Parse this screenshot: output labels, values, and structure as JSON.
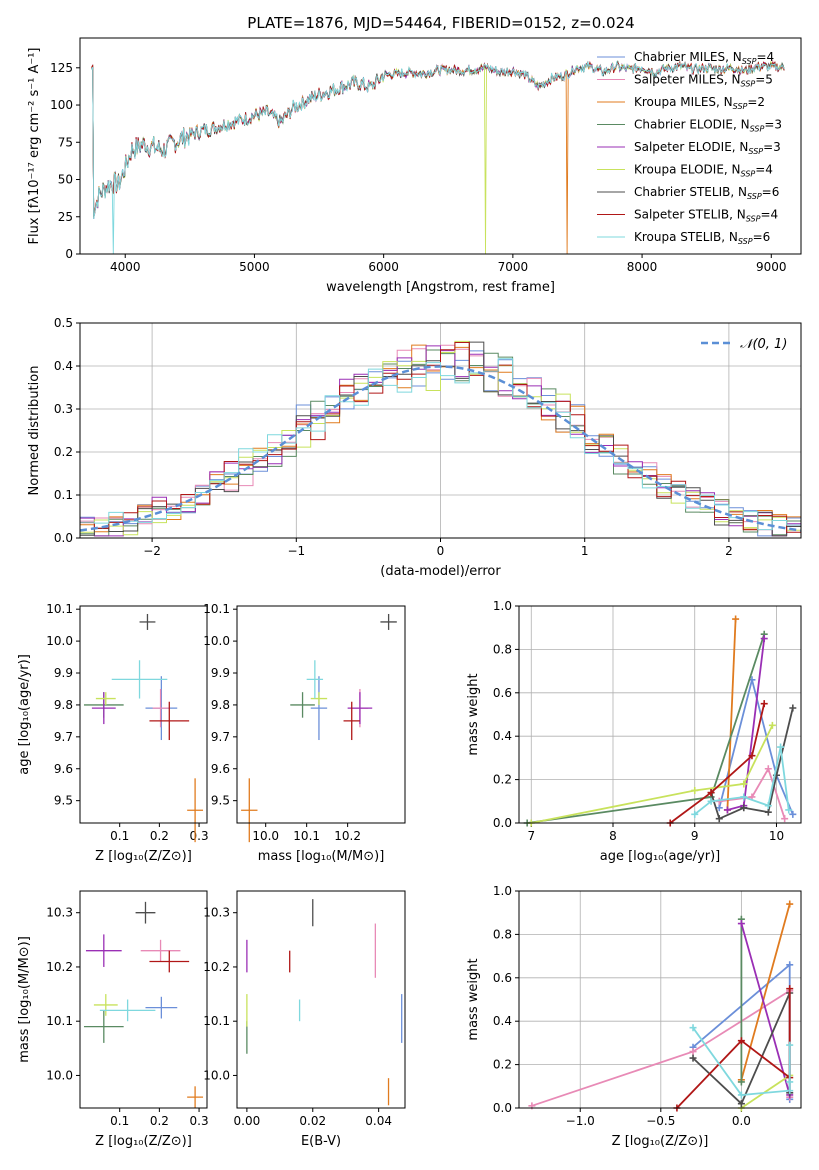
{
  "figure_title": "PLATE=1876, MJD=54464, FIBERID=0152, z=0.024",
  "models": [
    {
      "name": "Chabrier MILES",
      "nssp": "4",
      "color": "#6b8fd9"
    },
    {
      "name": "Salpeter MILES",
      "nssp": "5",
      "color": "#e88ab6"
    },
    {
      "name": "Kroupa MILES",
      "nssp": "2",
      "color": "#e07b1f"
    },
    {
      "name": "Chabrier ELODIE",
      "nssp": "3",
      "color": "#5a8a62"
    },
    {
      "name": "Salpeter ELODIE",
      "nssp": "3",
      "color": "#9a2fb5"
    },
    {
      "name": "Kroupa ELODIE",
      "nssp": "4",
      "color": "#c8e25c"
    },
    {
      "name": "Chabrier STELIB",
      "nssp": "6",
      "color": "#4d4d4d"
    },
    {
      "name": "Salpeter STELIB",
      "nssp": "4",
      "color": "#b01717"
    },
    {
      "name": "Kroupa STELIB",
      "nssp": "6",
      "color": "#7fd8de"
    }
  ],
  "chart_data": [
    {
      "id": "spectrum",
      "type": "line",
      "xlabel": "wavelength [Angstrom, rest frame]",
      "ylabel": "Flux [fλ10⁻¹⁷ erg cm⁻² s⁻¹ A⁻¹]",
      "xlim": [
        3650,
        9230
      ],
      "ylim": [
        0,
        145
      ],
      "xticks": [
        4000,
        5000,
        6000,
        7000,
        8000,
        9000
      ],
      "yticks": [
        0,
        25,
        50,
        75,
        100,
        125
      ],
      "continuum": [
        [
          3750,
          28
        ],
        [
          3800,
          40
        ],
        [
          3850,
          45
        ],
        [
          3900,
          48
        ],
        [
          3950,
          47
        ],
        [
          4000,
          58
        ],
        [
          4050,
          70
        ],
        [
          4100,
          72
        ],
        [
          4150,
          74
        ],
        [
          4200,
          72
        ],
        [
          4300,
          70
        ],
        [
          4400,
          76
        ],
        [
          4500,
          80
        ],
        [
          4600,
          83
        ],
        [
          4700,
          85
        ],
        [
          4800,
          88
        ],
        [
          4900,
          90
        ],
        [
          5000,
          93
        ],
        [
          5100,
          95
        ],
        [
          5200,
          88
        ],
        [
          5300,
          98
        ],
        [
          5400,
          103
        ],
        [
          5500,
          107
        ],
        [
          5600,
          110
        ],
        [
          5700,
          113
        ],
        [
          5800,
          115
        ],
        [
          5900,
          112
        ],
        [
          6000,
          120
        ],
        [
          6100,
          121
        ],
        [
          6200,
          122
        ],
        [
          6300,
          121
        ],
        [
          6400,
          123
        ],
        [
          6500,
          124
        ],
        [
          6600,
          123
        ],
        [
          6700,
          124
        ],
        [
          6800,
          125
        ],
        [
          6900,
          122
        ],
        [
          7000,
          123
        ],
        [
          7100,
          120
        ],
        [
          7200,
          112
        ],
        [
          7300,
          118
        ],
        [
          7400,
          120
        ],
        [
          7500,
          125
        ],
        [
          7600,
          126
        ],
        [
          7700,
          122
        ],
        [
          7800,
          126
        ],
        [
          7900,
          124
        ],
        [
          8000,
          125
        ],
        [
          8100,
          122
        ],
        [
          8200,
          125
        ],
        [
          8300,
          126
        ],
        [
          8400,
          124
        ],
        [
          8500,
          125
        ],
        [
          8600,
          124
        ],
        [
          8700,
          125
        ],
        [
          8800,
          123
        ],
        [
          8900,
          126
        ],
        [
          9000,
          126
        ],
        [
          9100,
          125
        ]
      ],
      "notes": "Model spectra overlap nearly completely; a few model curves drop to 0 near 3910, 6790 and 7420 Angstrom."
    },
    {
      "id": "residuals",
      "type": "histogram",
      "xlabel": "(data-model)/error",
      "ylabel": "Normed distribution",
      "xlim": [
        -2.5,
        2.5
      ],
      "ylim": [
        0,
        0.5
      ],
      "xticks": [
        -2,
        -1,
        0,
        1,
        2
      ],
      "yticks": [
        0.0,
        0.1,
        0.2,
        0.3,
        0.4,
        0.5
      ],
      "legend": "𝒩(0, 1)",
      "bin_width": 0.1,
      "reference_curve": "normal(0,1)"
    },
    {
      "id": "age_vs_Z",
      "type": "scatter",
      "xlabel": "Z [log₁₀(Z/Z⊙)]",
      "ylabel": "age  [log₁₀(age/yr)]",
      "xlim": [
        0.0,
        0.32
      ],
      "ylim": [
        9.43,
        10.11
      ],
      "xticks": [
        0.1,
        0.2,
        0.3
      ],
      "yticks": [
        9.5,
        9.6,
        9.7,
        9.8,
        9.9,
        10.0,
        10.1
      ],
      "points": [
        {
          "model": 0,
          "x": 0.205,
          "y": 9.79,
          "xerr": 0.04,
          "yerr": 0.1
        },
        {
          "model": 1,
          "x": 0.203,
          "y": 9.79,
          "xerr": 0.02,
          "yerr": 0.06
        },
        {
          "model": 2,
          "x": 0.29,
          "y": 9.47,
          "xerr": 0.02,
          "yerr": 0.1
        },
        {
          "model": 3,
          "x": 0.06,
          "y": 9.8,
          "xerr": 0.05,
          "yerr": 0.04
        },
        {
          "model": 4,
          "x": 0.06,
          "y": 9.79,
          "xerr": 0.03,
          "yerr": 0.05
        },
        {
          "model": 5,
          "x": 0.065,
          "y": 9.82,
          "xerr": 0.025,
          "yerr": 0.02
        },
        {
          "model": 6,
          "x": 0.17,
          "y": 10.06,
          "xerr": 0.02,
          "yerr": 0.025
        },
        {
          "model": 7,
          "x": 0.225,
          "y": 9.75,
          "xerr": 0.05,
          "yerr": 0.06
        },
        {
          "model": 8,
          "x": 0.15,
          "y": 9.88,
          "xerr": 0.07,
          "yerr": 0.06
        }
      ]
    },
    {
      "id": "age_vs_mass",
      "type": "scatter",
      "xlabel": "mass [log₁₀(M/M⊙)]",
      "ylabel": "",
      "xlim": [
        9.93,
        10.34
      ],
      "ylim": [
        9.43,
        10.11
      ],
      "xticks": [
        10.0,
        10.1,
        10.2
      ],
      "yticks": [
        9.5,
        9.6,
        9.7,
        9.8,
        9.9,
        10.0,
        10.1
      ],
      "points": [
        {
          "model": 0,
          "x": 10.13,
          "y": 9.79,
          "xerr": 0.02,
          "yerr": 0.1
        },
        {
          "model": 1,
          "x": 10.23,
          "y": 9.79,
          "xerr": 0.02,
          "yerr": 0.06
        },
        {
          "model": 2,
          "x": 9.96,
          "y": 9.47,
          "xerr": 0.02,
          "yerr": 0.1
        },
        {
          "model": 3,
          "x": 10.09,
          "y": 9.8,
          "xerr": 0.03,
          "yerr": 0.04
        },
        {
          "model": 4,
          "x": 10.23,
          "y": 9.79,
          "xerr": 0.03,
          "yerr": 0.05
        },
        {
          "model": 5,
          "x": 10.13,
          "y": 9.82,
          "xerr": 0.02,
          "yerr": 0.02
        },
        {
          "model": 6,
          "x": 10.3,
          "y": 10.06,
          "xerr": 0.02,
          "yerr": 0.025
        },
        {
          "model": 7,
          "x": 10.21,
          "y": 9.75,
          "xerr": 0.02,
          "yerr": 0.06
        },
        {
          "model": 8,
          "x": 10.12,
          "y": 9.88,
          "xerr": 0.02,
          "yerr": 0.06
        }
      ]
    },
    {
      "id": "mass_weight_vs_age",
      "type": "line",
      "xlabel": "age  [log₁₀(age/yr)]",
      "ylabel": "mass weight",
      "xlim": [
        6.85,
        10.3
      ],
      "ylim": [
        0,
        1.0
      ],
      "xticks": [
        7,
        8,
        9,
        10
      ],
      "yticks": [
        0.0,
        0.2,
        0.4,
        0.6,
        0.8,
        1.0
      ],
      "series": [
        {
          "model": 0,
          "points": [
            [
              9.3,
              0.07
            ],
            [
              9.7,
              0.66
            ],
            [
              10.0,
              0.22
            ],
            [
              10.2,
              0.04
            ]
          ]
        },
        {
          "model": 1,
          "points": [
            [
              9.3,
              0.1
            ],
            [
              9.7,
              0.12
            ],
            [
              9.9,
              0.25
            ],
            [
              10.1,
              0.02
            ]
          ]
        },
        {
          "model": 2,
          "points": [
            [
              9.5,
              0.94
            ],
            [
              9.4,
              0.06
            ]
          ]
        },
        {
          "model": 3,
          "points": [
            [
              6.95,
              0.0
            ],
            [
              9.2,
              0.12
            ],
            [
              9.85,
              0.87
            ]
          ]
        },
        {
          "model": 4,
          "points": [
            [
              9.4,
              0.06
            ],
            [
              9.6,
              0.08
            ],
            [
              9.85,
              0.85
            ]
          ]
        },
        {
          "model": 5,
          "points": [
            [
              7.0,
              0.0
            ],
            [
              9.0,
              0.15
            ],
            [
              9.6,
              0.18
            ],
            [
              9.95,
              0.45
            ]
          ]
        },
        {
          "model": 6,
          "points": [
            [
              9.2,
              0.14
            ],
            [
              9.3,
              0.02
            ],
            [
              9.6,
              0.07
            ],
            [
              9.9,
              0.05
            ],
            [
              10.0,
              0.22
            ],
            [
              10.2,
              0.53
            ]
          ]
        },
        {
          "model": 7,
          "points": [
            [
              8.7,
              0.0
            ],
            [
              9.2,
              0.14
            ],
            [
              9.7,
              0.31
            ],
            [
              9.85,
              0.55
            ]
          ]
        },
        {
          "model": 8,
          "points": [
            [
              9.0,
              0.04
            ],
            [
              9.2,
              0.1
            ],
            [
              9.6,
              0.12
            ],
            [
              9.9,
              0.08
            ],
            [
              10.05,
              0.35
            ],
            [
              10.15,
              0.06
            ]
          ]
        }
      ]
    },
    {
      "id": "mass_vs_Z",
      "type": "scatter",
      "xlabel": "Z [log₁₀(Z/Z⊙)]",
      "ylabel": "mass [log₁₀(M/M⊙)]",
      "xlim": [
        0.0,
        0.32
      ],
      "ylim": [
        9.94,
        10.34
      ],
      "xticks": [
        0.1,
        0.2,
        0.3
      ],
      "yticks": [
        10.0,
        10.1,
        10.2,
        10.3
      ],
      "points": [
        {
          "model": 0,
          "x": 0.205,
          "y": 10.125,
          "xerr": 0.04,
          "yerr": 0.02
        },
        {
          "model": 1,
          "x": 0.203,
          "y": 10.23,
          "xerr": 0.05,
          "yerr": 0.02
        },
        {
          "model": 2,
          "x": 0.29,
          "y": 9.96,
          "xerr": 0.02,
          "yerr": 0.02
        },
        {
          "model": 3,
          "x": 0.06,
          "y": 10.09,
          "xerr": 0.05,
          "yerr": 0.03
        },
        {
          "model": 4,
          "x": 0.06,
          "y": 10.23,
          "xerr": 0.045,
          "yerr": 0.03
        },
        {
          "model": 5,
          "x": 0.065,
          "y": 10.13,
          "xerr": 0.03,
          "yerr": 0.02
        },
        {
          "model": 6,
          "x": 0.165,
          "y": 10.3,
          "xerr": 0.025,
          "yerr": 0.02
        },
        {
          "model": 7,
          "x": 0.225,
          "y": 10.21,
          "xerr": 0.05,
          "yerr": 0.02
        },
        {
          "model": 8,
          "x": 0.12,
          "y": 10.12,
          "xerr": 0.07,
          "yerr": 0.02
        }
      ]
    },
    {
      "id": "mass_vs_EBV",
      "type": "scatter",
      "xlabel": "E(B-V)",
      "ylabel": "",
      "xlim": [
        -0.003,
        0.048
      ],
      "ylim": [
        9.94,
        10.34
      ],
      "xticks": [
        0.0,
        0.02,
        0.04
      ],
      "yticks": [
        10.0,
        10.1,
        10.2,
        10.3
      ],
      "points": [
        {
          "model": 0,
          "x": 0.047,
          "y": 10.105,
          "xerr": 0.0,
          "yerr": 0.045
        },
        {
          "model": 1,
          "x": 0.039,
          "y": 10.23,
          "xerr": 0.0,
          "yerr": 0.05
        },
        {
          "model": 2,
          "x": 0.043,
          "y": 9.97,
          "xerr": 0.0,
          "yerr": 0.025
        },
        {
          "model": 3,
          "x": 0.0,
          "y": 10.07,
          "xerr": 0.0,
          "yerr": 0.03
        },
        {
          "model": 4,
          "x": 0.0,
          "y": 10.22,
          "xerr": 0.0,
          "yerr": 0.03
        },
        {
          "model": 5,
          "x": 0.0,
          "y": 10.12,
          "xerr": 0.0,
          "yerr": 0.03
        },
        {
          "model": 6,
          "x": 0.02,
          "y": 10.3,
          "xerr": 0.0,
          "yerr": 0.025
        },
        {
          "model": 7,
          "x": 0.013,
          "y": 10.21,
          "xerr": 0.0,
          "yerr": 0.02
        },
        {
          "model": 8,
          "x": 0.016,
          "y": 10.12,
          "xerr": 0.0,
          "yerr": 0.02
        }
      ]
    },
    {
      "id": "mass_weight_vs_Z",
      "type": "line",
      "xlabel": "Z [log₁₀(Z/Z⊙)]",
      "ylabel": "mass weight",
      "xlim": [
        -1.38,
        0.37
      ],
      "ylim": [
        0,
        1.0
      ],
      "xticks": [
        -1.0,
        -0.5,
        0.0
      ],
      "yticks": [
        0.0,
        0.2,
        0.4,
        0.6,
        0.8,
        1.0
      ],
      "series": [
        {
          "model": 0,
          "points": [
            [
              -0.3,
              0.28
            ],
            [
              0.3,
              0.66
            ],
            [
              0.3,
              0.04
            ]
          ]
        },
        {
          "model": 1,
          "points": [
            [
              -1.3,
              0.01
            ],
            [
              -0.3,
              0.26
            ],
            [
              0.3,
              0.54
            ],
            [
              0.3,
              0.05
            ]
          ]
        },
        {
          "model": 2,
          "points": [
            [
              0.3,
              0.94
            ],
            [
              0.0,
              0.13
            ]
          ]
        },
        {
          "model": 3,
          "points": [
            [
              0.0,
              0.87
            ],
            [
              0.0,
              0.12
            ]
          ]
        },
        {
          "model": 4,
          "points": [
            [
              0.0,
              0.85
            ],
            [
              0.3,
              0.06
            ]
          ]
        },
        {
          "model": 5,
          "points": [
            [
              0.0,
              0.0
            ],
            [
              0.3,
              0.15
            ]
          ]
        },
        {
          "model": 6,
          "points": [
            [
              -0.3,
              0.23
            ],
            [
              0.0,
              0.02
            ],
            [
              0.3,
              0.53
            ],
            [
              0.3,
              0.07
            ]
          ]
        },
        {
          "model": 7,
          "points": [
            [
              -0.4,
              0.0
            ],
            [
              0.0,
              0.31
            ],
            [
              0.3,
              0.14
            ],
            [
              0.3,
              0.55
            ]
          ]
        },
        {
          "model": 8,
          "points": [
            [
              -0.3,
              0.37
            ],
            [
              0.0,
              0.06
            ],
            [
              0.3,
              0.08
            ],
            [
              0.3,
              0.29
            ],
            [
              0.3,
              0.12
            ]
          ]
        }
      ]
    }
  ]
}
